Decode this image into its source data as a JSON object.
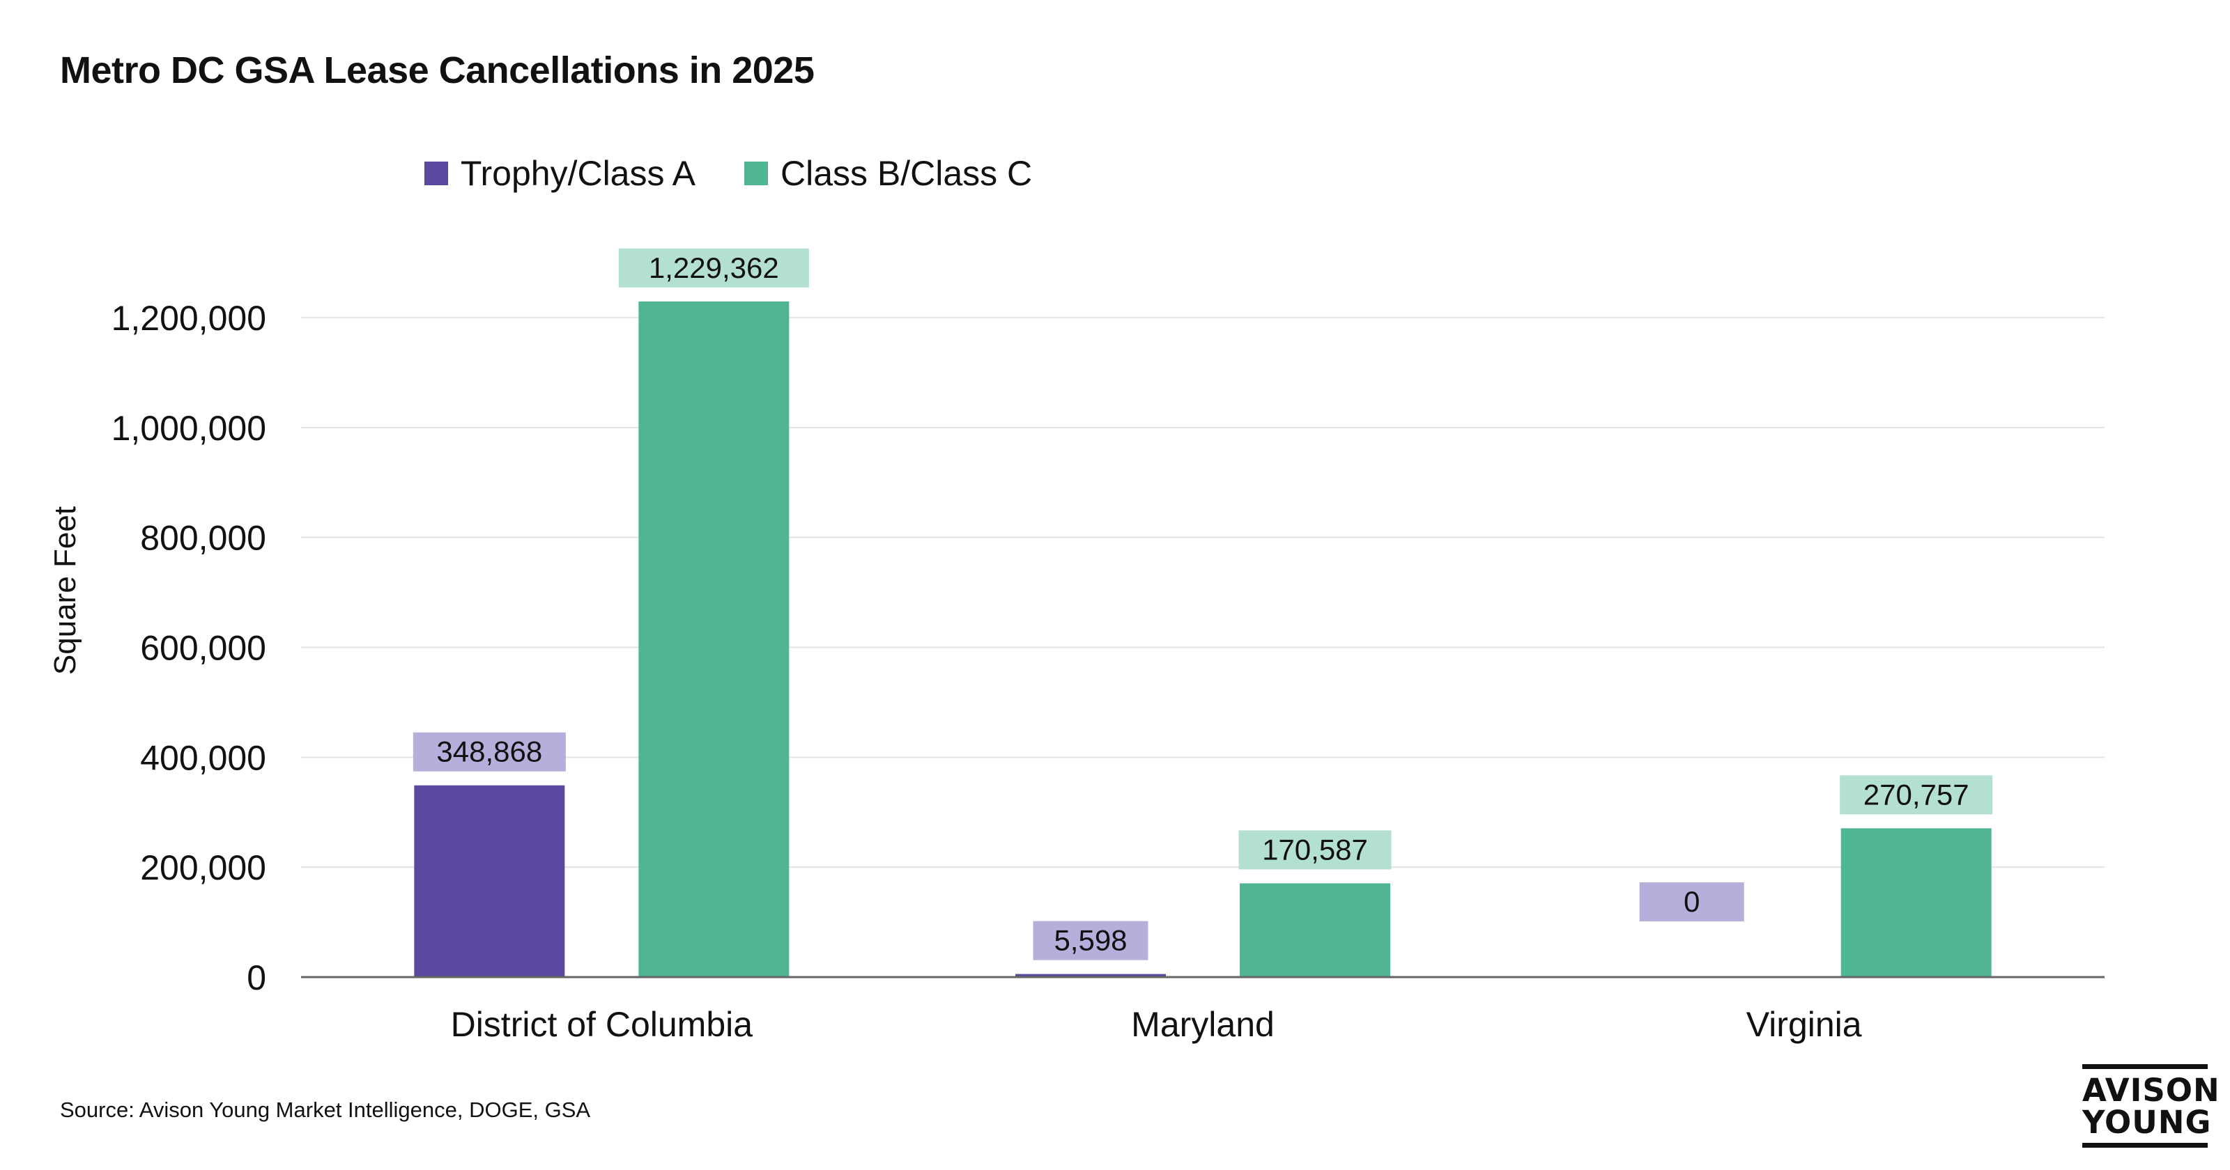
{
  "chart_data": {
    "type": "bar",
    "title": "Metro DC GSA Lease Cancellations in 2025",
    "ylabel": "Square Feet",
    "xlabel": "",
    "ylim": [
      0,
      1200000
    ],
    "yticks": [
      0,
      200000,
      400000,
      600000,
      800000,
      1000000,
      1200000
    ],
    "ytick_labels": [
      "0",
      "200,000",
      "400,000",
      "600,000",
      "800,000",
      "1,000,000",
      "1,200,000"
    ],
    "categories": [
      "District of Columbia",
      "Maryland",
      "Virginia"
    ],
    "series": [
      {
        "name": "Trophy/Class A",
        "color": "#59489d",
        "label_bg": "#b6aedb",
        "values": [
          348868,
          5598,
          0
        ],
        "labels": [
          "348,868",
          "5,598",
          "0"
        ]
      },
      {
        "name": "Class B/Class C",
        "color": "#4fb595",
        "label_bg": "#b4e0d1",
        "values": [
          1229362,
          170587,
          270757
        ],
        "labels": [
          "1,229,362",
          "170,587",
          "270,757"
        ]
      }
    ],
    "legend_position": "top-center",
    "grid": true,
    "source": "Source: Avison Young Market Intelligence, DOGE, GSA",
    "logo_text": [
      "AVISON",
      "YOUNG"
    ]
  }
}
